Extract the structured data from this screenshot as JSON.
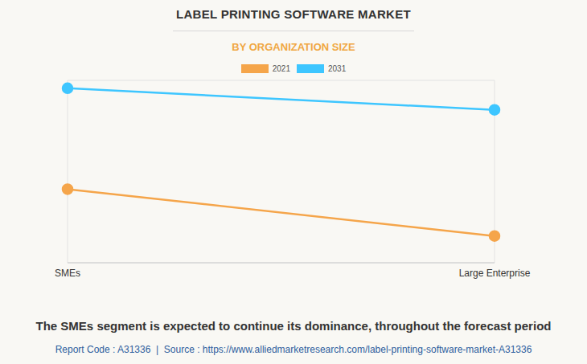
{
  "chart_data": {
    "type": "line",
    "title": "LABEL PRINTING SOFTWARE MARKET",
    "subtitle": "BY ORGANIZATION SIZE",
    "annotations": [
      "The SMEs segment is expected to continue its dominance, throughout the forecast period",
      "Report Code : A31336  |  Source : https://www.alliedmarketresearch.com/label-printing-software-market-A31336"
    ],
    "categories": [
      "SMEs",
      "Large Enterprise"
    ],
    "series": [
      {
        "name": "2021",
        "color": "#f5a54a",
        "values": [
          2.42,
          0.88
        ]
      },
      {
        "name": "2031",
        "color": "#3ec6ff",
        "values": [
          5.74,
          5.03
        ]
      }
    ],
    "ylim": [
      0,
      6
    ],
    "yticks": [
      0,
      1,
      2,
      3,
      4,
      5,
      6
    ],
    "grid": true,
    "tick_labels": "x",
    "legend": "top",
    "marker": "circle"
  }
}
